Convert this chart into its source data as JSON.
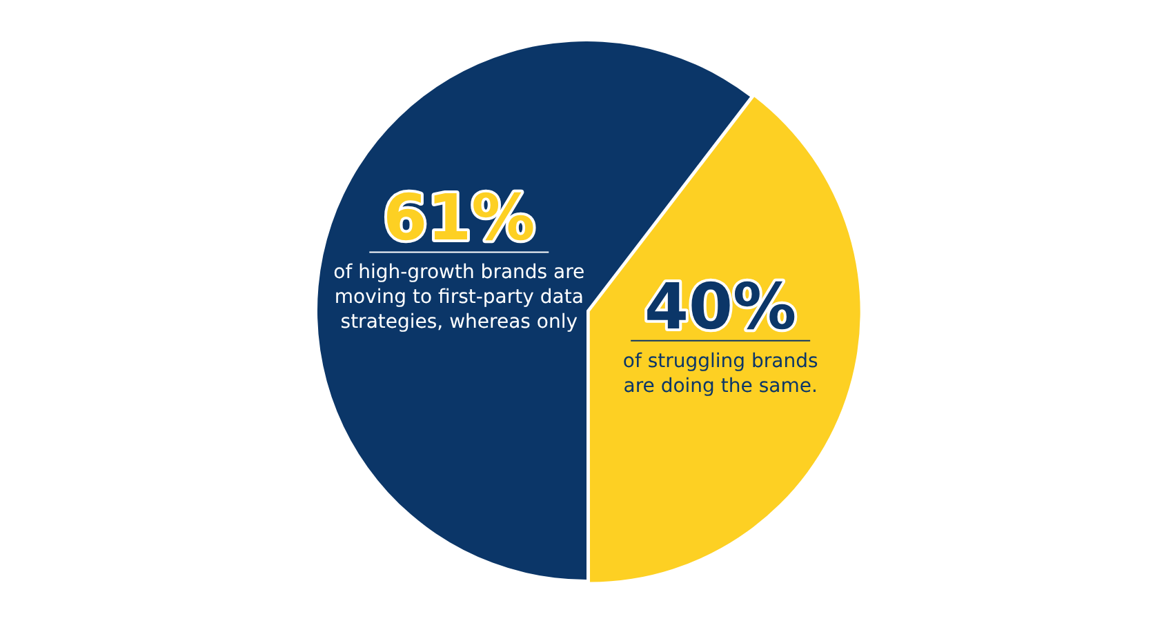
{
  "chart_data": {
    "type": "pie",
    "categories": [
      null,
      null
    ],
    "values": [
      61,
      40
    ],
    "colors": [
      "#0b3668",
      "#fdd023"
    ],
    "value_labels": [
      "61%",
      "40%"
    ],
    "annotations": [
      "of high-growth brands are moving to first-party data strategies, whereas only",
      "of struggling brands are doing the same."
    ]
  }
}
